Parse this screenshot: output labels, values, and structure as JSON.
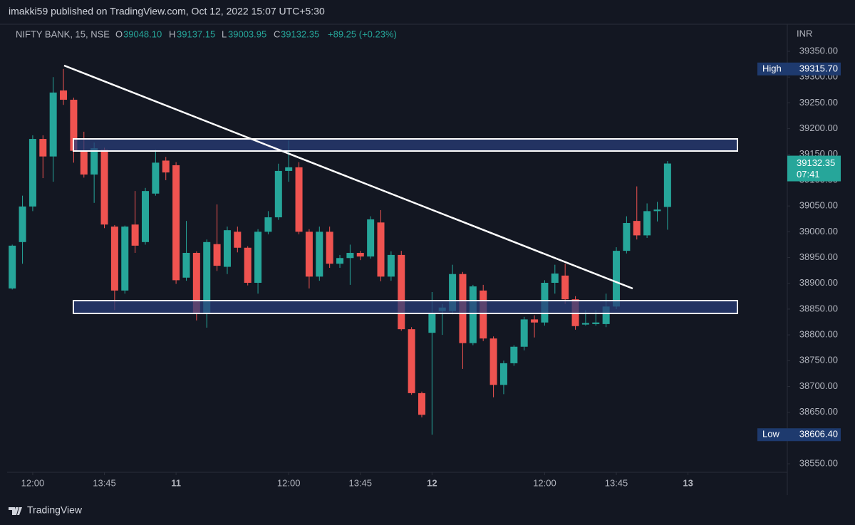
{
  "header": {
    "publisher": "imakki59 published on TradingView.com, Oct 12, 2022 15:07 UTC+5:30",
    "footer": "TradingView"
  },
  "chart_data": {
    "type": "candlestick",
    "legend": {
      "symbol": "NIFTY BANK, 15, NSE",
      "o": "O",
      "o_value": "39048.10",
      "h": "H",
      "h_value": "39137.15",
      "l": "L",
      "l_value": "39003.95",
      "c": "C",
      "c_value": "39132.35",
      "change": "+89.25 (+0.23%)"
    },
    "currency": "INR",
    "up_color": "#26a69a",
    "down_color": "#ef5350",
    "open": [
      38890,
      38980,
      39049,
      39180,
      39146,
      39274,
      39256,
      39157,
      39111,
      39159,
      39010,
      38886,
      39014,
      38980,
      39074,
      39138,
      39129,
      38911,
      38959,
      38842,
      38976,
      38932,
      39000,
      38969,
      38901,
      39000,
      39028,
      39118,
      39125,
      39000,
      38913,
      39000,
      38938,
      38949,
      38959,
      38952,
      39018,
      38913,
      38955,
      38811,
      38687,
      38804,
      38846,
      38846,
      38918,
      38784,
      38886,
      38793,
      38703,
      38745,
      38777,
      38830,
      38824,
      38901,
      38915,
      38869,
      38820,
      38821,
      38821,
      38855,
      38963,
      39021,
      38993,
      39040,
      39048.1
    ],
    "high": [
      38975,
      39070,
      39187,
      39187,
      39300,
      39315.7,
      39260,
      39194,
      39173,
      39163,
      39013,
      39012,
      39079,
      39085,
      39159,
      39145,
      39135,
      39021,
      38962,
      38985,
      39053,
      39010,
      39010,
      38972,
      39005,
      39040,
      39132,
      39177,
      39135,
      39005,
      39010,
      39010,
      38955,
      38975,
      38963,
      39030,
      39042,
      38962,
      38963,
      38815,
      38690,
      38883,
      38860,
      38936,
      38922,
      38897,
      38897,
      38797,
      38750,
      38780,
      38835,
      38838,
      38906,
      38936,
      38938,
      38875,
      38848,
      38848,
      38880,
      38970,
      39030,
      39088,
      39055,
      39058,
      39137.15
    ],
    "low": [
      38888,
      38938,
      39040,
      39104,
      39097,
      39246,
      39134,
      39105,
      39056,
      39007,
      38848,
      38880,
      38959,
      38975,
      39070,
      39100,
      38899,
      38905,
      38828,
      38814,
      38924,
      38918,
      38960,
      38896,
      38880,
      38995,
      39023,
      39097,
      38995,
      38890,
      38905,
      38930,
      38930,
      38897,
      38945,
      38948,
      38904,
      38905,
      38808,
      38684,
      38640,
      38606.4,
      38800,
      38840,
      38734,
      38780,
      38788,
      38679,
      38685,
      38740,
      38770,
      38795,
      38818,
      38880,
      38860,
      38810,
      38818,
      38818,
      38815,
      38850,
      38958,
      38985,
      38988,
      39020,
      39003.95
    ],
    "close": [
      38973,
      39049,
      39180,
      39146,
      39270,
      39256,
      39157,
      39111,
      39162,
      39014,
      38886,
      39010,
      38973,
      39079,
      39134,
      39115,
      38906,
      38959,
      38842,
      38980,
      38934,
      39003,
      38969,
      38901,
      39000,
      39028,
      39118,
      39125,
      39000,
      38913,
      39000,
      38938,
      38949,
      38959,
      38952,
      39024,
      38913,
      38955,
      38811,
      38687,
      38645,
      38842,
      38853,
      38918,
      38784,
      38894,
      38793,
      38703,
      38745,
      38777,
      38830,
      38824,
      38901,
      38919,
      38869,
      38817,
      38823,
      38824,
      38855,
      38963,
      39017,
      38993,
      39040,
      39043,
      39132.35
    ],
    "xlim": [
      -0.5,
      75.7
    ],
    "xticks": [
      {
        "value": 2,
        "label": "12:00"
      },
      {
        "value": 9,
        "label": "13:45"
      },
      {
        "value": 16,
        "label": "11"
      },
      {
        "value": 27,
        "label": "12:00"
      },
      {
        "value": 34,
        "label": "13:45"
      },
      {
        "value": 41,
        "label": "12"
      },
      {
        "value": 52,
        "label": "12:00"
      },
      {
        "value": 59,
        "label": "13:45"
      },
      {
        "value": 66,
        "label": "13"
      }
    ],
    "ylim": [
      38533.5,
      39402.5
    ],
    "yticks": [
      {
        "value": 38550,
        "label": "38550.00"
      },
      {
        "value": 38650,
        "label": "38650.00"
      },
      {
        "value": 38700,
        "label": "38700.00"
      },
      {
        "value": 38750,
        "label": "38750.00"
      },
      {
        "value": 38800,
        "label": "38800.00"
      },
      {
        "value": 38850,
        "label": "38850.00"
      },
      {
        "value": 38900,
        "label": "38900.00"
      },
      {
        "value": 38950,
        "label": "38950.00"
      },
      {
        "value": 39000,
        "label": "39000.00"
      },
      {
        "value": 39050,
        "label": "39050.00"
      },
      {
        "value": 39100,
        "label": "39100.00"
      },
      {
        "value": 39150,
        "label": "39150.00"
      },
      {
        "value": 39200,
        "label": "39200.00"
      },
      {
        "value": 39250,
        "label": "39250.00"
      },
      {
        "value": 39300,
        "label": "39300.00"
      },
      {
        "value": 39350,
        "label": "39350.00"
      }
    ],
    "markers": {
      "high_title": "High",
      "high_text": "39315.70",
      "low_title": "Low",
      "low_text": "38606.40",
      "last_text": "39132.35",
      "countdown": "07:41"
    },
    "grid": false
  }
}
